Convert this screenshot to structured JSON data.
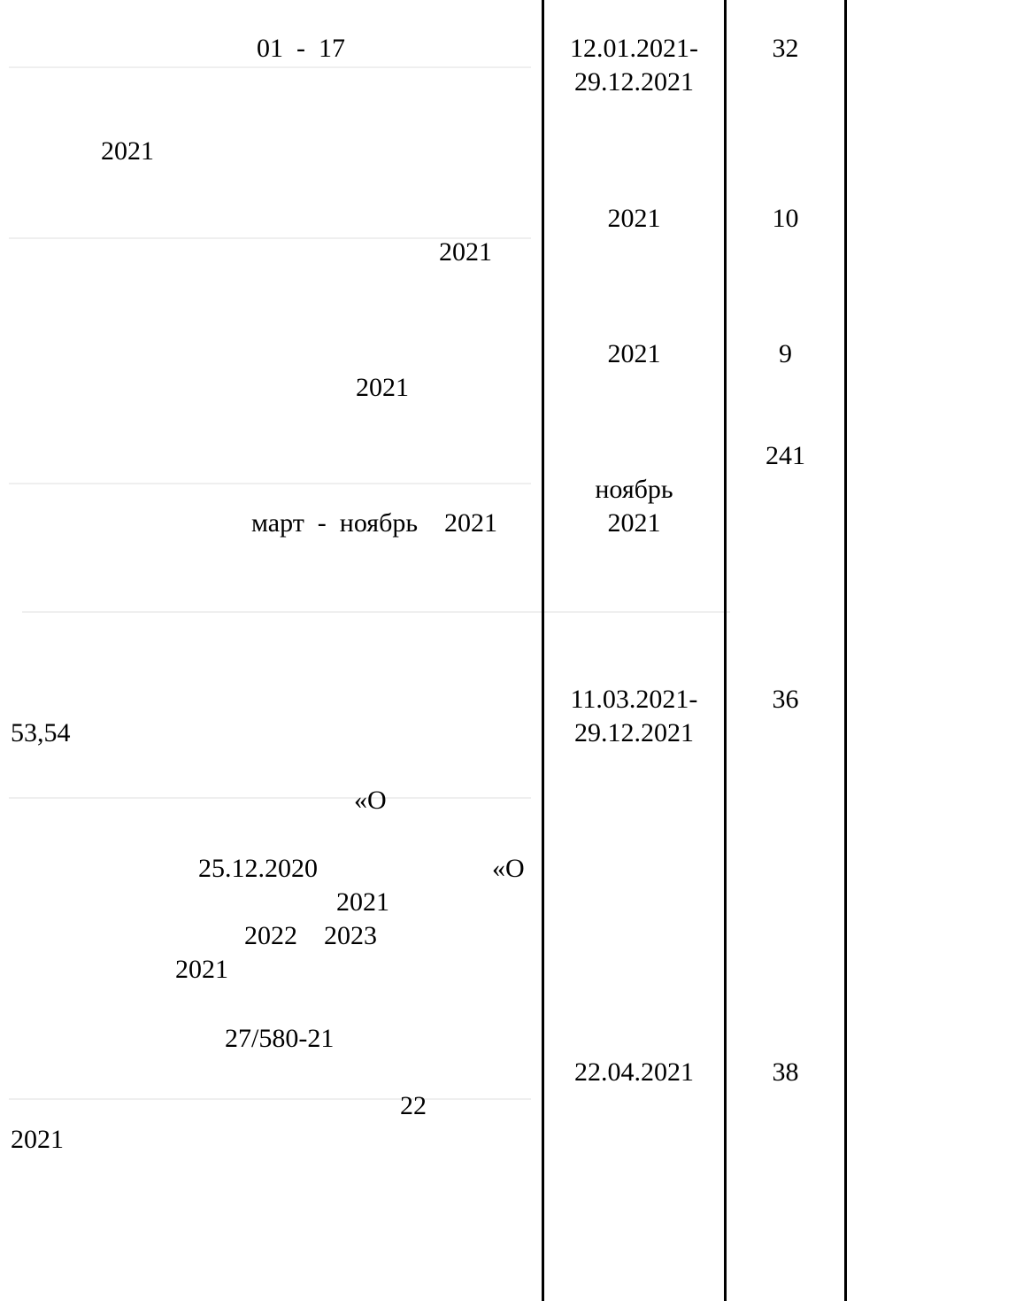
{
  "rows": [
    {
      "desc_fragments": [
        "01  -  17",
        "2021"
      ],
      "period": [
        "12.01.2021-",
        "29.12.2021"
      ],
      "count": "32"
    },
    {
      "desc_fragments": [
        "2021"
      ],
      "period": [
        "2021"
      ],
      "count": "10"
    },
    {
      "desc_fragments": [
        "2021"
      ],
      "period": [
        "2021"
      ],
      "count": "9"
    },
    {
      "desc_fragments": [
        "март  -  ноябрь    2021"
      ],
      "period": [
        "ноябрь",
        "2021"
      ],
      "count": "241"
    },
    {
      "desc_fragments": [
        "53,54",
        "«О",
        "25.12.2020",
        "«О",
        "2021",
        "2022    2023",
        "2021"
      ],
      "period": [
        "11.03.2021-",
        "29.12.2021"
      ],
      "count": "36"
    },
    {
      "desc_fragments": [
        "27/580-21",
        "22",
        "2021"
      ],
      "period": [
        "22.04.2021"
      ],
      "count": "38"
    }
  ]
}
